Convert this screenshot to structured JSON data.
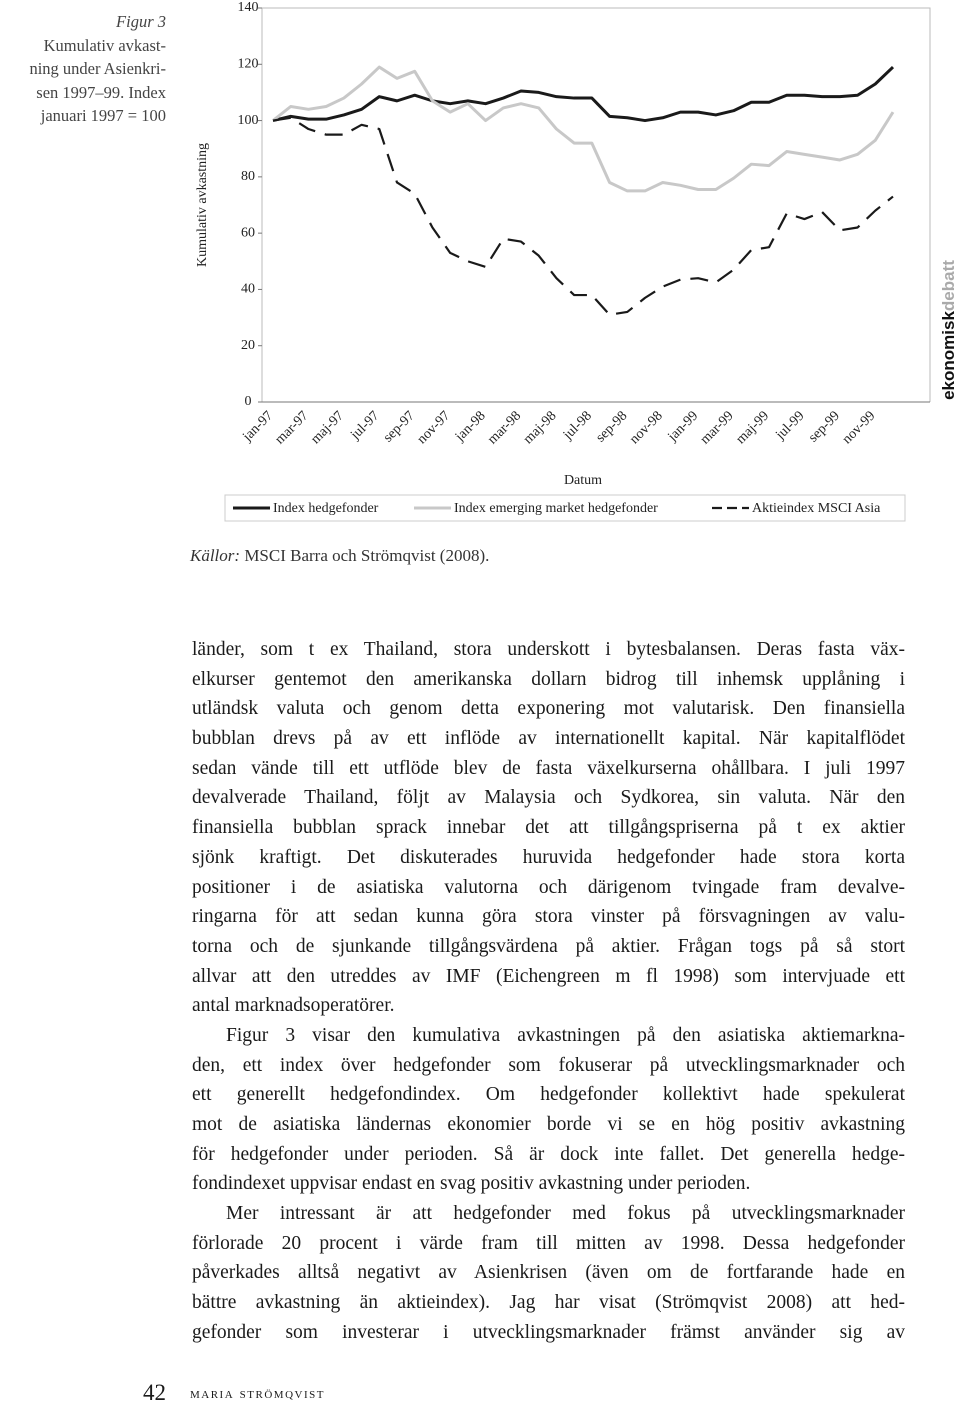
{
  "figure": {
    "label": "Figur 3",
    "caption_lines": [
      "Kumulativ avkast-",
      "ning under Asienkri-",
      "sen 1997–99. Index",
      "januari 1997 = 100"
    ]
  },
  "chart_data": {
    "type": "line",
    "x_label": "Datum",
    "y_label": "Kumulativ avkastning",
    "categories": [
      "jan-97",
      null,
      "mar-97",
      null,
      "maj-97",
      null,
      "jul-97",
      null,
      "sep-97",
      null,
      "nov-97",
      null,
      "jan-98",
      null,
      "mar-98",
      null,
      "maj-98",
      null,
      "jul-98",
      null,
      "sep-98",
      null,
      "nov-98",
      null,
      "jan-99",
      null,
      "mar-99",
      null,
      "maj-99",
      null,
      "jul-99",
      null,
      "sep-99",
      null,
      "nov-99",
      null
    ],
    "series": [
      {
        "name": "Index hedgefonder",
        "color": "#1a1a1a",
        "dashed": false,
        "values": [
          100,
          101.5,
          100.5,
          100.5,
          102,
          104,
          108.5,
          107,
          109,
          107,
          106,
          107,
          106,
          108,
          110.5,
          110,
          108.5,
          108,
          108,
          101.5,
          101,
          100,
          101,
          103,
          103,
          102,
          103.5,
          106.5,
          106.5,
          109,
          109,
          108.5,
          108.5,
          109,
          113,
          119
        ]
      },
      {
        "name": "Index emerging market hedgefonder",
        "color": "#c8c8c8",
        "dashed": false,
        "values": [
          100,
          105,
          104,
          105,
          108,
          113,
          119,
          115,
          117.5,
          107,
          103,
          106,
          100,
          104.5,
          106,
          104.5,
          97,
          92,
          92,
          78,
          75,
          75,
          78,
          77,
          75.5,
          75.5,
          79.5,
          84.5,
          84,
          89,
          88,
          87,
          86,
          88,
          93,
          103
        ]
      },
      {
        "name": "Aktieindex MSCI Asia",
        "color": "#1a1a1a",
        "dashed": true,
        "values": [
          100,
          101,
          97,
          95,
          95,
          98.5,
          97,
          78,
          74,
          62,
          53,
          50,
          48,
          58,
          57,
          52,
          44,
          38,
          38,
          31,
          32,
          37,
          41,
          43.5,
          44,
          42.5,
          47,
          54,
          55,
          67,
          65,
          67.5,
          61,
          62,
          68,
          73
        ]
      }
    ],
    "ylim": [
      0,
      140
    ],
    "yticks": [
      0,
      20,
      40,
      60,
      80,
      100,
      120,
      140
    ],
    "grid": false,
    "legend": "bottom"
  },
  "source": {
    "label": "Källor:",
    "text": " MSCI Barra och Strömqvist (2008)."
  },
  "brand": [
    "ekonomisk",
    "debatt"
  ],
  "body": {
    "paragraphs": [
      [
        "länder, som t ex Thailand, stora underskott i bytesbalansen. Deras fasta väx-",
        "elkurser gentemot den amerikanska dollarn bidrog till inhemsk upplåning i",
        "utländsk valuta och genom detta exponering mot valutarisk. Den finansiella",
        "bubblan drevs på av ett inflöde av internationellt kapital. När kapitalflödet",
        "sedan vände till ett utflöde blev de fasta växelkurserna ohållbara. I juli 1997",
        "devalverade Thailand, följt av Malaysia och Sydkorea, sin valuta. När den",
        "finansiella bubblan sprack innebar det att tillgångspriserna på t ex aktier",
        "sjönk kraftigt. Det diskuterades huruvida hedgefonder hade stora korta",
        "positioner i de asiatiska valutorna och därigenom tvingade fram devalve-",
        "ringarna för att sedan kunna göra stora vinster på försvagningen av valu-",
        "torna och de sjunkande tillgångsvärdena på aktier. Frågan togs på så stort",
        "allvar att den utreddes av IMF (Eichengreen m fl 1998) som intervjuade ett",
        "antal marknadsoperatörer."
      ],
      [
        "Figur 3 visar den kumulativa avkastningen på den asiatiska aktiemarkna-",
        "den, ett index över hedgefonder som fokuserar på utvecklingsmarknader och",
        "ett generellt hedgefondindex. Om hedgefonder kollektivt hade spekulerat",
        "mot de asiatiska ländernas ekonomier borde vi se en hög positiv avkastning",
        "för hedgefonder under perioden. Så är dock inte fallet. Det generella hedge-",
        "fondindexet uppvisar endast en svag positiv avkastning under perioden."
      ],
      [
        "Mer intressant är att hedgefonder med fokus på utvecklingsmarknader",
        "förlorade 20 procent i värde fram till mitten av 1998. Dessa hedgefonder",
        "påverkades alltså negativt av Asienkrisen (även om de fortfarande hade en",
        "bättre avkastning än aktieindex). Jag har visat (Strömqvist 2008) att hed-",
        "gefonder som investerar i utvecklingsmarknader främst använder sig av"
      ]
    ]
  },
  "footer": {
    "page": "42",
    "author": "maria strömqvist"
  }
}
